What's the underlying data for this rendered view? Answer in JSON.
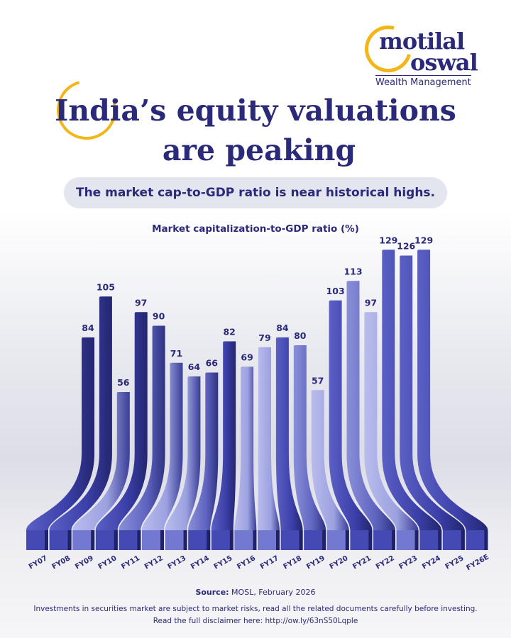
{
  "brand": {
    "logo_line1": "motilal",
    "logo_line2": "oswal",
    "logo_subtitle": "Wealth Management"
  },
  "header": {
    "title_line1": "India’s equity valuations",
    "title_line2": "are peaking",
    "subtitle": "The market cap-to-GDP ratio is near historical highs."
  },
  "colors": {
    "navy": "#2b2a7a",
    "accent_yellow": "#f2b619",
    "bar_dark": "#3b3fa8",
    "bar_light": "#a4a8e2"
  },
  "chart_data": {
    "type": "bar",
    "title": "Market capitalization-to-GDP ratio (%)",
    "categories": [
      "FY07",
      "FY08",
      "FY09",
      "FY10",
      "FY11",
      "FY12",
      "FY13",
      "FY14",
      "FY15",
      "FY16",
      "FY17",
      "FY18",
      "FY19",
      "FY20",
      "FY21",
      "FY22",
      "FY23",
      "FY24",
      "FY25",
      "FY26E"
    ],
    "values": [
      84,
      105,
      56,
      97,
      90,
      71,
      64,
      66,
      82,
      69,
      79,
      84,
      80,
      57,
      103,
      113,
      97,
      129,
      126,
      129
    ],
    "data_labels": true,
    "grid": false,
    "style": "3d-curved"
  },
  "footer": {
    "source_label": "Source:",
    "source_text": " MOSL, February 2026",
    "disclaimer": "Investments in securities market are subject to market risks, read all the related documents carefully before investing.",
    "disclaimer_link": "Read the full disclaimer here: http://ow.ly/63nS50Lqple"
  }
}
